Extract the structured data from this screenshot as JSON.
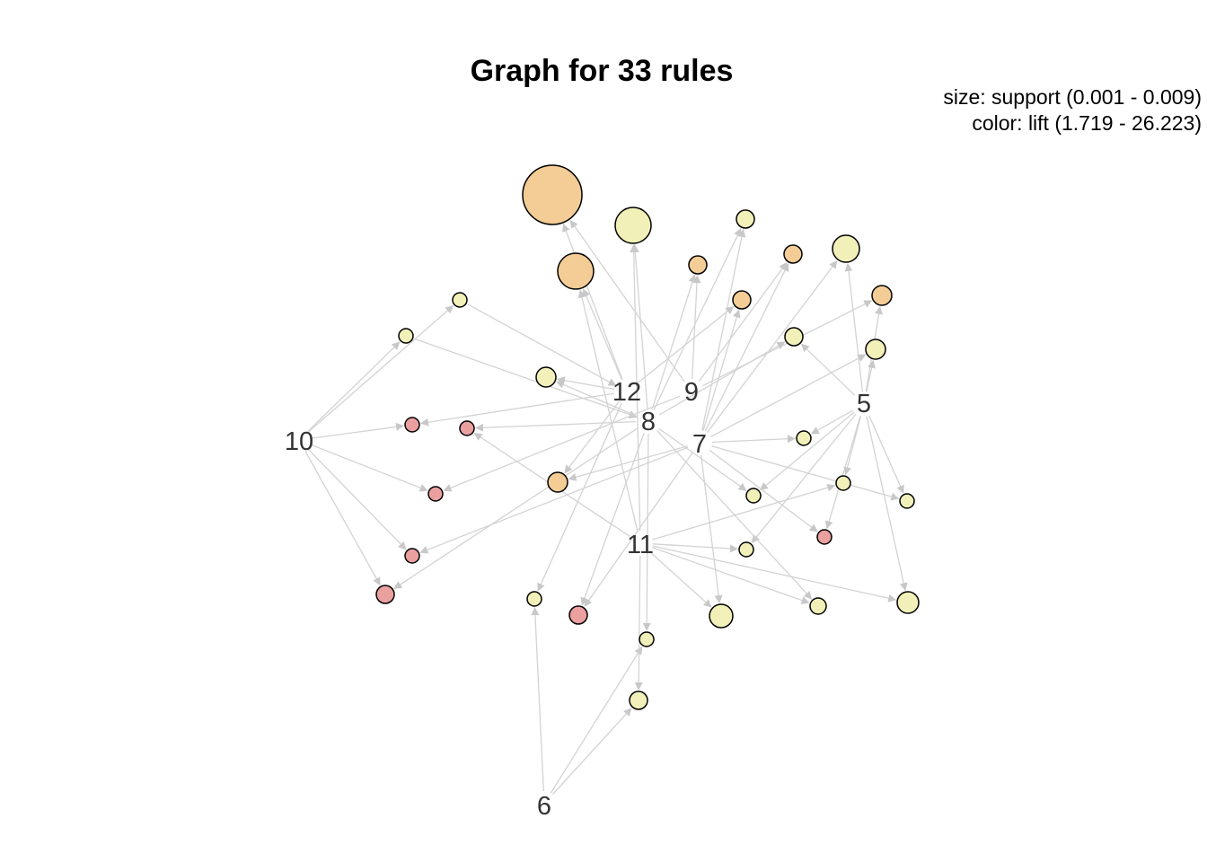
{
  "title": "Graph for 33 rules",
  "legend": {
    "size_line": "size: support (0.001 - 0.009)",
    "color_line": "color: lift (1.719 - 26.223)"
  },
  "colors": {
    "edge": "#d3d3d3",
    "node_stroke": "#000000",
    "low_lift": "#f1f0b8",
    "mid_lift": "#f3cc96",
    "high_lift": "#eba0a0"
  },
  "item_labels": [
    "5",
    "6",
    "7",
    "8",
    "9",
    "10",
    "11",
    "12"
  ]
}
